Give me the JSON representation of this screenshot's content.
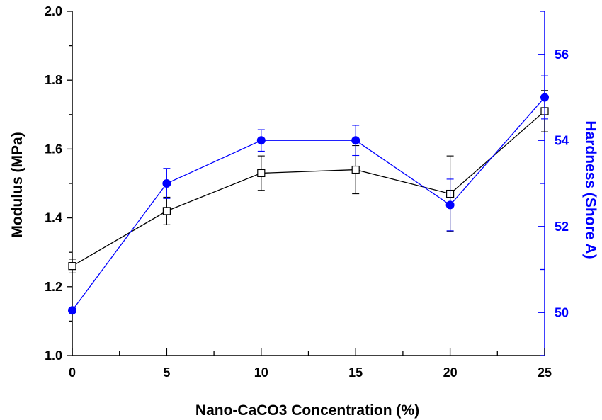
{
  "chart_data": {
    "type": "line",
    "title": "",
    "xlabel": "Nano-CaCO3 Concentration (%)",
    "ylabel": "Modulus (MPa)",
    "y2label": "Hardness (Shore A)",
    "xlim": [
      0,
      25
    ],
    "ylim": [
      1.0,
      2.0
    ],
    "y2lim": [
      49.0,
      57.0
    ],
    "x_ticks": [
      "0",
      "5",
      "10",
      "15",
      "20",
      "25"
    ],
    "y_ticks": [
      "1.0",
      "1.2",
      "1.4",
      "1.6",
      "1.8",
      "2.0"
    ],
    "y2_ticks": [
      "50",
      "52",
      "54",
      "56"
    ],
    "grid": false,
    "legend": "none",
    "series": [
      {
        "axis": "left",
        "marker": "open-square",
        "color": "#000000",
        "x": [
          0,
          5,
          10,
          15,
          20,
          25
        ],
        "values": [
          1.26,
          1.42,
          1.53,
          1.54,
          1.47,
          1.71
        ],
        "error": [
          0.02,
          0.04,
          0.05,
          0.07,
          0.11,
          0.06
        ]
      },
      {
        "axis": "right",
        "marker": "filled-circle",
        "color": "#0000ff",
        "x": [
          0,
          5,
          10,
          15,
          20,
          25
        ],
        "values": [
          50.05,
          53.0,
          54.0,
          54.0,
          52.5,
          55.0
        ],
        "error": [
          0.05,
          0.35,
          0.25,
          0.35,
          0.6,
          0.5
        ]
      }
    ]
  }
}
